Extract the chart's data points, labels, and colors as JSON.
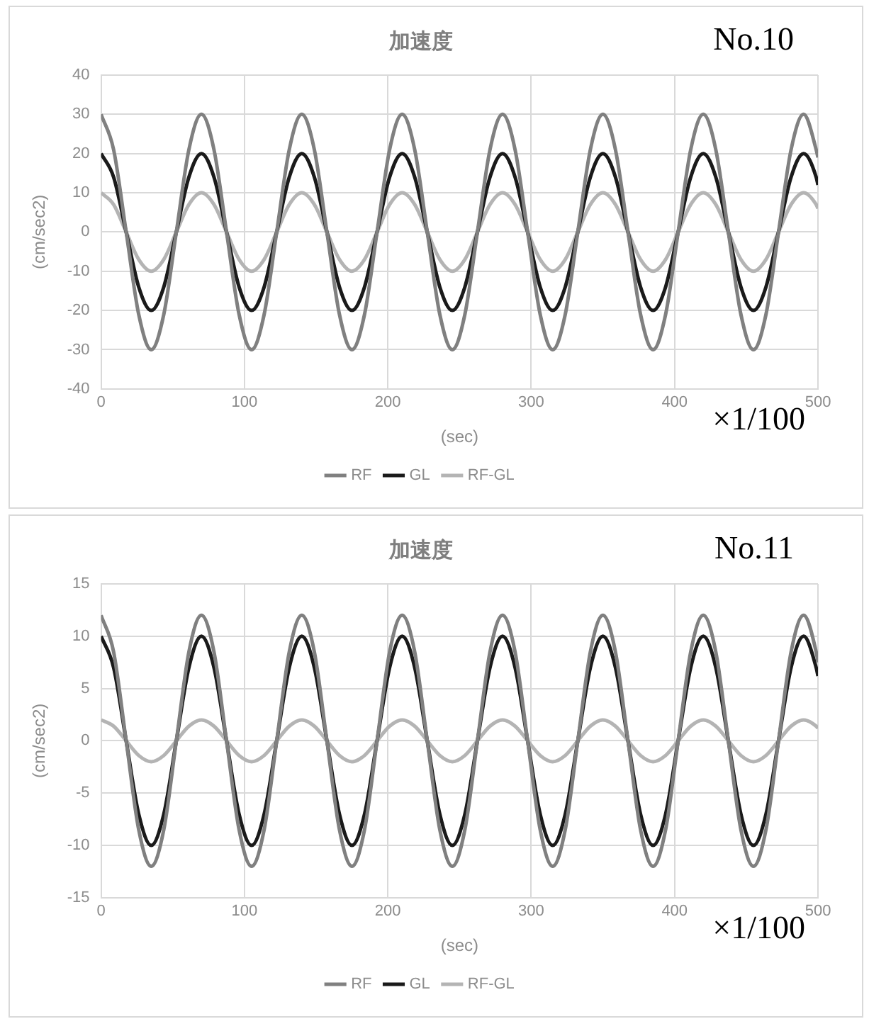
{
  "chart_data": [
    {
      "type": "line",
      "title": "加速度",
      "xlabel": "(sec)",
      "ylabel": "(cm/sec2)",
      "annotations": [
        "No.10",
        "×1/100"
      ],
      "x": [
        0,
        8.75,
        17.5,
        26.25,
        35,
        43.75,
        52.5,
        61.25,
        70,
        78.75,
        87.5,
        96.25,
        105,
        113.75,
        122.5,
        131.25,
        140,
        148.75,
        157.5,
        166.25,
        175,
        183.75,
        192.5,
        201.25,
        210,
        218.75,
        227.5,
        236.25,
        245,
        253.75,
        262.5,
        271.25,
        280,
        288.75,
        297.5,
        306.25,
        315,
        323.75,
        332.5,
        341.25,
        350,
        358.75,
        367.5,
        376.25,
        385,
        393.75,
        402.5,
        411.25,
        420,
        428.75,
        437.5,
        446.25,
        455,
        463.75,
        472.5,
        481.25,
        490,
        498.75,
        500
      ],
      "series": [
        {
          "name": "RF",
          "color": "#808080",
          "values": [
            30,
            21,
            0,
            -21,
            -30,
            -21,
            0,
            21,
            30,
            21,
            0,
            -21,
            -30,
            -21,
            0,
            21,
            30,
            21,
            0,
            -21,
            -30,
            -21,
            0,
            21,
            30,
            21,
            0,
            -21,
            -30,
            -21,
            0,
            21,
            30,
            21,
            0,
            -21,
            -30,
            -21,
            0,
            21,
            30,
            21,
            0,
            -21,
            -30,
            -21,
            0,
            21,
            30,
            21,
            0,
            -21,
            -30,
            -21,
            0,
            21,
            30,
            21,
            19
          ]
        },
        {
          "name": "GL",
          "color": "#1a1a1a",
          "values": [
            20,
            14,
            0,
            -14,
            -20,
            -14,
            0,
            14,
            20,
            14,
            0,
            -14,
            -20,
            -14,
            0,
            14,
            20,
            14,
            0,
            -14,
            -20,
            -14,
            0,
            14,
            20,
            14,
            0,
            -14,
            -20,
            -14,
            0,
            14,
            20,
            14,
            0,
            -14,
            -20,
            -14,
            0,
            14,
            20,
            14,
            0,
            -14,
            -20,
            -14,
            0,
            14,
            20,
            14,
            0,
            -14,
            -20,
            -14,
            0,
            14,
            20,
            14,
            12
          ]
        },
        {
          "name": "RF-GL",
          "color": "#b4b4b4",
          "values": [
            10,
            7,
            0,
            -7,
            -10,
            -7,
            0,
            7,
            10,
            7,
            0,
            -7,
            -10,
            -7,
            0,
            7,
            10,
            7,
            0,
            -7,
            -10,
            -7,
            0,
            7,
            10,
            7,
            0,
            -7,
            -10,
            -7,
            0,
            7,
            10,
            7,
            0,
            -7,
            -10,
            -7,
            0,
            7,
            10,
            7,
            0,
            -7,
            -10,
            -7,
            0,
            7,
            10,
            7,
            0,
            -7,
            -10,
            -7,
            0,
            7,
            10,
            7,
            6
          ]
        }
      ],
      "xlim": [
        0,
        500
      ],
      "xticks": [
        0,
        100,
        200,
        300,
        400,
        500
      ],
      "ylim": [
        -40,
        40
      ],
      "yticks": [
        -40,
        -30,
        -20,
        -10,
        0,
        10,
        20,
        30,
        40
      ],
      "grid": true,
      "legend": "bottom",
      "marker": "none"
    },
    {
      "type": "line",
      "title": "加速度",
      "xlabel": "(sec)",
      "ylabel": "(cm/sec2)",
      "annotations": [
        "No.11",
        "×1/100"
      ],
      "x": [
        0,
        8.75,
        17.5,
        26.25,
        35,
        43.75,
        52.5,
        61.25,
        70,
        78.75,
        87.5,
        96.25,
        105,
        113.75,
        122.5,
        131.25,
        140,
        148.75,
        157.5,
        166.25,
        175,
        183.75,
        192.5,
        201.25,
        210,
        218.75,
        227.5,
        236.25,
        245,
        253.75,
        262.5,
        271.25,
        280,
        288.75,
        297.5,
        306.25,
        315,
        323.75,
        332.5,
        341.25,
        350,
        358.75,
        367.5,
        376.25,
        385,
        393.75,
        402.5,
        411.25,
        420,
        428.75,
        437.5,
        446.25,
        455,
        463.75,
        472.5,
        481.25,
        490,
        498.75,
        500
      ],
      "series": [
        {
          "name": "RF",
          "color": "#808080",
          "values": [
            12,
            8.5,
            0,
            -8.5,
            -12,
            -8.5,
            0,
            8.5,
            12,
            8.5,
            0,
            -8.5,
            -12,
            -8.5,
            0,
            8.5,
            12,
            8.5,
            0,
            -8.5,
            -12,
            -8.5,
            0,
            8.5,
            12,
            8.5,
            0,
            -8.5,
            -12,
            -8.5,
            0,
            8.5,
            12,
            8.5,
            0,
            -8.5,
            -12,
            -8.5,
            0,
            8.5,
            12,
            8.5,
            0,
            -8.5,
            -12,
            -8.5,
            0,
            8.5,
            12,
            8.5,
            0,
            -8.5,
            -12,
            -8.5,
            0,
            8.5,
            12,
            8.5,
            7.5
          ]
        },
        {
          "name": "GL",
          "color": "#1a1a1a",
          "values": [
            10,
            7,
            0,
            -7,
            -10,
            -7,
            0,
            7,
            10,
            7,
            0,
            -7,
            -10,
            -7,
            0,
            7,
            10,
            7,
            0,
            -7,
            -10,
            -7,
            0,
            7,
            10,
            7,
            0,
            -7,
            -10,
            -7,
            0,
            7,
            10,
            7,
            0,
            -7,
            -10,
            -7,
            0,
            7,
            10,
            7,
            0,
            -7,
            -10,
            -7,
            0,
            7,
            10,
            7,
            0,
            -7,
            -10,
            -7,
            0,
            7,
            10,
            7,
            6.2
          ]
        },
        {
          "name": "RF-GL",
          "color": "#b4b4b4",
          "values": [
            2,
            1.4,
            0,
            -1.4,
            -2,
            -1.4,
            0,
            1.4,
            2,
            1.4,
            0,
            -1.4,
            -2,
            -1.4,
            0,
            1.4,
            2,
            1.4,
            0,
            -1.4,
            -2,
            -1.4,
            0,
            1.4,
            2,
            1.4,
            0,
            -1.4,
            -2,
            -1.4,
            0,
            1.4,
            2,
            1.4,
            0,
            -1.4,
            -2,
            -1.4,
            0,
            1.4,
            2,
            1.4,
            0,
            -1.4,
            -2,
            -1.4,
            0,
            1.4,
            2,
            1.4,
            0,
            -1.4,
            -2,
            -1.4,
            0,
            1.4,
            2,
            1.4,
            1.2
          ]
        }
      ],
      "xlim": [
        0,
        500
      ],
      "xticks": [
        0,
        100,
        200,
        300,
        400,
        500
      ],
      "ylim": [
        -15,
        15
      ],
      "yticks": [
        -15,
        -10,
        -5,
        0,
        5,
        10,
        15
      ],
      "grid": true,
      "legend": "bottom",
      "marker": "none"
    }
  ]
}
